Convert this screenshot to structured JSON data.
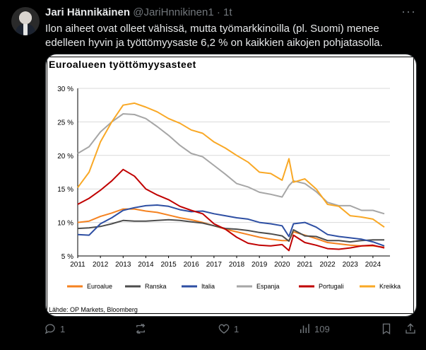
{
  "tweet": {
    "author_name": "Jari Hännikäinen",
    "handle": "@JariHnnikinen1",
    "separator": "·",
    "time": "1t",
    "text": "Ilon aiheet ovat olleet vähissä, mutta työmarkkinoilla (pl. Suomi) menee edelleen hyvin ja työttömyysaste 6,2 % on kaikkien aikojen pohjatasolla."
  },
  "actions": {
    "reply_count": "1",
    "repost_count": "",
    "like_count": "1",
    "views_count": "109"
  },
  "colors": {
    "Euroalue": "#f58220",
    "Ranska": "#4d4d4d",
    "Italia": "#2e4fa3",
    "Espanja": "#a6a6a6",
    "Portugali": "#c00000",
    "Kreikka": "#f9a825"
  },
  "chart_data": {
    "type": "line",
    "title": "Euroalueen työttömyysasteet",
    "source": "Lähde: OP Markets, Bloomberg",
    "xlabel": "",
    "ylabel": "",
    "ylim": [
      5,
      30
    ],
    "yticks": [
      "30 %",
      "25 %",
      "20 %",
      "15 %",
      "10 %",
      "5 %"
    ],
    "xticks": [
      "2011",
      "2012",
      "2013",
      "2014",
      "2015",
      "2016",
      "2017",
      "2018",
      "2019",
      "2020",
      "2021",
      "2022",
      "2023",
      "2024"
    ],
    "x": [
      2011.0,
      2011.5,
      2012.0,
      2012.5,
      2013.0,
      2013.5,
      2014.0,
      2014.5,
      2015.0,
      2015.5,
      2016.0,
      2016.5,
      2017.0,
      2017.5,
      2018.0,
      2018.5,
      2019.0,
      2019.5,
      2020.0,
      2020.3,
      2020.5,
      2021.0,
      2021.5,
      2022.0,
      2022.5,
      2023.0,
      2023.5,
      2024.0,
      2024.5
    ],
    "series": [
      {
        "name": "Euroalue",
        "values": [
          10.0,
          10.2,
          10.9,
          11.4,
          12.0,
          12.0,
          11.7,
          11.5,
          11.1,
          10.7,
          10.4,
          10.0,
          9.5,
          9.0,
          8.6,
          8.2,
          7.8,
          7.5,
          7.3,
          7.3,
          8.6,
          8.1,
          7.6,
          7.0,
          6.8,
          6.6,
          6.5,
          6.5,
          6.3
        ]
      },
      {
        "name": "Ranska",
        "values": [
          9.1,
          9.2,
          9.4,
          9.8,
          10.3,
          10.2,
          10.2,
          10.3,
          10.4,
          10.3,
          10.1,
          9.9,
          9.5,
          9.1,
          9.0,
          8.8,
          8.5,
          8.3,
          8.0,
          7.2,
          8.9,
          8.0,
          7.9,
          7.3,
          7.3,
          7.1,
          7.3,
          7.4,
          7.4
        ]
      },
      {
        "name": "Italia",
        "values": [
          8.2,
          8.1,
          9.8,
          10.7,
          11.8,
          12.2,
          12.5,
          12.6,
          12.4,
          11.9,
          11.6,
          11.7,
          11.3,
          11.0,
          10.7,
          10.5,
          10.0,
          9.8,
          9.5,
          7.9,
          9.8,
          10.0,
          9.3,
          8.2,
          7.9,
          7.7,
          7.5,
          7.1,
          6.5
        ]
      },
      {
        "name": "Espanja",
        "values": [
          20.3,
          21.3,
          23.5,
          25.0,
          26.2,
          26.1,
          25.5,
          24.3,
          23.0,
          21.5,
          20.3,
          19.8,
          18.5,
          17.2,
          15.8,
          15.3,
          14.5,
          14.2,
          13.8,
          15.5,
          16.2,
          15.8,
          14.6,
          13.0,
          12.5,
          12.5,
          11.8,
          11.8,
          11.3
        ]
      },
      {
        "name": "Portugali",
        "values": [
          12.7,
          13.6,
          14.8,
          16.2,
          17.9,
          16.9,
          15.0,
          14.1,
          13.4,
          12.4,
          11.8,
          11.3,
          9.8,
          9.0,
          7.8,
          6.9,
          6.6,
          6.5,
          6.7,
          5.8,
          8.1,
          7.0,
          6.6,
          6.1,
          6.0,
          6.2,
          6.5,
          6.6,
          6.2
        ]
      },
      {
        "name": "Kreikka",
        "values": [
          15.2,
          17.5,
          22.0,
          25.0,
          27.5,
          27.8,
          27.2,
          26.5,
          25.5,
          24.8,
          23.8,
          23.3,
          22.0,
          21.1,
          20.0,
          19.0,
          17.5,
          17.3,
          16.3,
          19.5,
          16.0,
          16.5,
          15.0,
          12.7,
          12.4,
          11.0,
          10.8,
          10.5,
          9.3
        ]
      }
    ],
    "legend_position": "bottom",
    "grid": true
  }
}
